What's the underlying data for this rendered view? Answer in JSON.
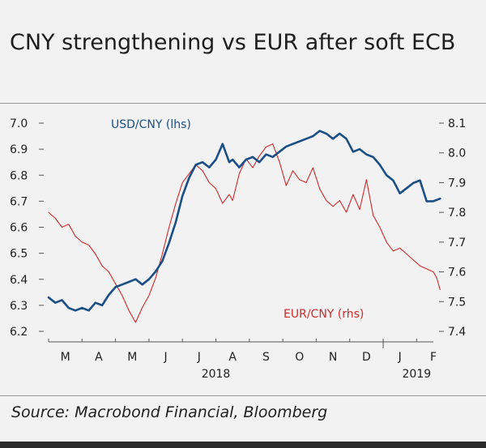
{
  "header": {
    "title": "CNY strengthening vs EUR after soft ECB"
  },
  "footer": {
    "source": "Source: Macrobond Financial, Bloomberg"
  },
  "colors": {
    "usd": "#1a4f86",
    "eur": "#cf2a2a",
    "axis": "#555555",
    "background": "#f2f2f2"
  },
  "chart_data": {
    "type": "line",
    "title": "CNY strengthening vs EUR after soft ECB",
    "x_range": [
      0,
      11.5
    ],
    "x_unit": "months since start of March 2018",
    "x_tick_labels": [
      {
        "label": "M",
        "x": 0.5
      },
      {
        "label": "A",
        "x": 1.5
      },
      {
        "label": "M",
        "x": 2.5
      },
      {
        "label": "J",
        "x": 3.5
      },
      {
        "label": "J",
        "x": 4.5
      },
      {
        "label": "A",
        "x": 5.5
      },
      {
        "label": "S",
        "x": 6.5
      },
      {
        "label": "O",
        "x": 7.5
      },
      {
        "label": "N",
        "x": 8.5
      },
      {
        "label": "D",
        "x": 9.5
      },
      {
        "label": "J",
        "x": 10.5
      },
      {
        "label": "F",
        "x": 11.5
      }
    ],
    "year_labels": [
      {
        "label": "2018",
        "x": 5.0
      },
      {
        "label": "2019",
        "x": 11.0
      }
    ],
    "left_axis": {
      "min": 6.2,
      "max": 7.0,
      "ticks": [
        "7.0",
        "6.9",
        "6.8",
        "6.7",
        "6.6",
        "6.5",
        "6.4",
        "6.3",
        "6.2"
      ]
    },
    "right_axis": {
      "min": 7.4,
      "max": 8.1,
      "ticks": [
        "8.1",
        "8.0",
        "7.9",
        "7.8",
        "7.7",
        "7.6",
        "7.5",
        "7.4"
      ]
    },
    "series": [
      {
        "name": "USD/CNY (lhs)",
        "axis": "left",
        "color": "#1a4f86",
        "x": [
          0.0,
          0.2,
          0.4,
          0.6,
          0.8,
          1.0,
          1.2,
          1.4,
          1.6,
          1.8,
          2.0,
          2.2,
          2.4,
          2.6,
          2.8,
          3.0,
          3.2,
          3.4,
          3.6,
          3.8,
          4.0,
          4.2,
          4.4,
          4.6,
          4.8,
          5.0,
          5.2,
          5.4,
          5.5,
          5.7,
          5.9,
          6.1,
          6.3,
          6.5,
          6.7,
          6.9,
          7.1,
          7.3,
          7.5,
          7.7,
          7.9,
          8.1,
          8.3,
          8.5,
          8.7,
          8.9,
          9.1,
          9.3,
          9.5,
          9.7,
          9.9,
          10.1,
          10.3,
          10.5,
          10.7,
          10.9,
          11.1,
          11.3,
          11.5,
          11.7
        ],
        "y": [
          6.33,
          6.31,
          6.32,
          6.29,
          6.28,
          6.29,
          6.28,
          6.31,
          6.3,
          6.34,
          6.37,
          6.38,
          6.39,
          6.4,
          6.38,
          6.4,
          6.43,
          6.47,
          6.54,
          6.62,
          6.72,
          6.79,
          6.84,
          6.85,
          6.83,
          6.86,
          6.92,
          6.85,
          6.86,
          6.83,
          6.86,
          6.87,
          6.85,
          6.88,
          6.87,
          6.89,
          6.91,
          6.92,
          6.93,
          6.94,
          6.95,
          6.97,
          6.96,
          6.94,
          6.96,
          6.94,
          6.89,
          6.9,
          6.88,
          6.87,
          6.84,
          6.8,
          6.78,
          6.73,
          6.75,
          6.77,
          6.78,
          6.7,
          6.7,
          6.71
        ]
      },
      {
        "name": "EUR/CNY (rhs)",
        "axis": "right",
        "color": "#cf2a2a",
        "x": [
          0.0,
          0.2,
          0.4,
          0.6,
          0.8,
          1.0,
          1.2,
          1.4,
          1.6,
          1.8,
          2.0,
          2.2,
          2.4,
          2.6,
          2.8,
          3.0,
          3.2,
          3.4,
          3.6,
          3.8,
          4.0,
          4.2,
          4.4,
          4.6,
          4.8,
          5.0,
          5.2,
          5.4,
          5.5,
          5.7,
          5.9,
          6.1,
          6.3,
          6.5,
          6.7,
          6.9,
          7.1,
          7.3,
          7.5,
          7.7,
          7.9,
          8.1,
          8.3,
          8.5,
          8.7,
          8.9,
          9.1,
          9.3,
          9.5,
          9.7,
          9.9,
          10.1,
          10.3,
          10.5,
          10.7,
          10.9,
          11.1,
          11.3,
          11.5,
          11.6,
          11.7
        ],
        "y": [
          7.8,
          7.78,
          7.75,
          7.76,
          7.72,
          7.7,
          7.69,
          7.66,
          7.62,
          7.6,
          7.56,
          7.52,
          7.47,
          7.43,
          7.48,
          7.52,
          7.58,
          7.66,
          7.75,
          7.83,
          7.9,
          7.93,
          7.96,
          7.94,
          7.9,
          7.88,
          7.83,
          7.86,
          7.84,
          7.93,
          7.98,
          7.95,
          7.99,
          8.02,
          8.03,
          7.97,
          7.89,
          7.94,
          7.91,
          7.9,
          7.95,
          7.88,
          7.84,
          7.82,
          7.84,
          7.8,
          7.86,
          7.81,
          7.91,
          7.79,
          7.75,
          7.7,
          7.67,
          7.68,
          7.66,
          7.64,
          7.62,
          7.61,
          7.6,
          7.58,
          7.54
        ]
      }
    ]
  }
}
